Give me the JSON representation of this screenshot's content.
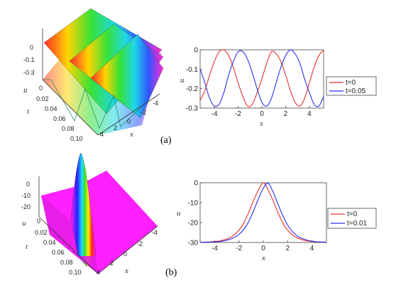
{
  "captions": [
    "(a)",
    "(b)"
  ],
  "chart_data": [
    {
      "type": "surface3d",
      "panel": "a-left",
      "zlabel": "u",
      "xlabel": "x",
      "tlabel": "t",
      "z_ticks": [
        "0",
        "-0.1",
        "-0.3"
      ],
      "t_ticks": [
        "0",
        "0.02",
        "0.04",
        "0.06",
        "0.08",
        "0.10"
      ],
      "x_ticks": [
        "-4",
        "-2",
        "0",
        "2",
        "4"
      ],
      "colormap": "rainbow",
      "x_range": [
        -4,
        4
      ],
      "t_range": [
        0,
        0.1
      ],
      "z_range": [
        -0.3,
        0
      ]
    },
    {
      "type": "line",
      "panel": "a-right",
      "xlabel": "x",
      "ylabel": "u",
      "xlim": [
        -5.2,
        5.2
      ],
      "ylim": [
        -0.3,
        0
      ],
      "x_ticks": [
        "-4",
        "-2",
        "0",
        "2",
        "4"
      ],
      "y_ticks": [
        "0",
        "-0.1",
        "-0.2",
        "-0.3"
      ],
      "legend_position": "right",
      "series": [
        {
          "name": "t=0",
          "color": "#e8302c",
          "x": [
            -5.2,
            -4.8,
            -4.4,
            -4.0,
            -3.6,
            -3.2,
            -2.8,
            -2.4,
            -2.0,
            -1.6,
            -1.2,
            -0.8,
            -0.4,
            0.0,
            0.4,
            0.8,
            1.2,
            1.6,
            2.0,
            2.4,
            2.8,
            3.2,
            3.6,
            4.0,
            4.4,
            4.8,
            5.2
          ],
          "y": [
            -0.26,
            -0.21,
            -0.13,
            -0.06,
            -0.01,
            0.0,
            -0.03,
            -0.09,
            -0.17,
            -0.24,
            -0.29,
            -0.28,
            -0.22,
            -0.15,
            -0.07,
            -0.01,
            -0.02,
            -0.06,
            -0.13,
            -0.21,
            -0.27,
            -0.29,
            -0.25,
            -0.17,
            -0.09,
            -0.03,
            -0.002
          ]
        },
        {
          "name": "t=0.05",
          "color": "#2b2ef0",
          "x": [
            -5.2,
            -4.8,
            -4.4,
            -4.0,
            -3.6,
            -3.2,
            -2.8,
            -2.4,
            -2.0,
            -1.6,
            -1.2,
            -0.8,
            -0.4,
            0.0,
            0.4,
            0.8,
            1.2,
            1.6,
            2.0,
            2.4,
            2.8,
            3.2,
            3.6,
            4.0,
            4.4,
            4.8,
            5.2
          ],
          "y": [
            -0.1,
            -0.17,
            -0.25,
            -0.29,
            -0.28,
            -0.22,
            -0.13,
            -0.06,
            -0.01,
            -0.01,
            -0.05,
            -0.12,
            -0.2,
            -0.27,
            -0.29,
            -0.25,
            -0.17,
            -0.09,
            -0.03,
            0.0,
            -0.02,
            -0.07,
            -0.15,
            -0.22,
            -0.28,
            -0.29,
            -0.24
          ]
        }
      ]
    },
    {
      "type": "surface3d",
      "panel": "b-left",
      "zlabel": "u",
      "xlabel": "x",
      "tlabel": "t",
      "z_ticks": [
        "0",
        "-10",
        "-20"
      ],
      "t_ticks": [
        "0",
        "0.02",
        "0.04",
        "0.06",
        "0.08",
        "0.10"
      ],
      "x_ticks": [
        "-4",
        "-2",
        "0",
        "2",
        "4"
      ],
      "colormap": "rainbow",
      "x_range": [
        -4,
        4
      ],
      "t_range": [
        0,
        0.1
      ],
      "z_range": [
        -30,
        0
      ]
    },
    {
      "type": "line",
      "panel": "b-right",
      "xlabel": "x",
      "ylabel": "u",
      "xlim": [
        -5.2,
        5.2
      ],
      "ylim": [
        -30,
        0
      ],
      "x_ticks": [
        "-4",
        "-2",
        "0",
        "2",
        "4"
      ],
      "y_ticks": [
        "0",
        "-10",
        "-20",
        "-30"
      ],
      "legend_position": "right",
      "series": [
        {
          "name": "t=0",
          "color": "#e8302c",
          "x": [
            -5.2,
            -4.8,
            -4.4,
            -4.0,
            -3.6,
            -3.2,
            -2.8,
            -2.4,
            -2.0,
            -1.6,
            -1.2,
            -0.8,
            -0.4,
            0.0,
            0.4,
            0.8,
            1.2,
            1.6,
            2.0,
            2.4,
            2.8,
            3.2,
            3.6,
            4.0,
            4.4,
            4.8,
            5.2
          ],
          "y": [
            -29.9,
            -29.8,
            -29.7,
            -29.5,
            -29.2,
            -28.6,
            -27.7,
            -26.2,
            -23.8,
            -20.1,
            -14.9,
            -8.9,
            -3.6,
            0.0,
            -3.6,
            -8.9,
            -14.9,
            -20.1,
            -23.8,
            -26.2,
            -27.7,
            -28.6,
            -29.2,
            -29.5,
            -29.7,
            -29.8,
            -29.9
          ]
        },
        {
          "name": "t=0.01",
          "color": "#2b2ef0",
          "x": [
            -5.2,
            -4.8,
            -4.4,
            -4.0,
            -3.6,
            -3.2,
            -2.8,
            -2.4,
            -2.0,
            -1.6,
            -1.2,
            -0.8,
            -0.4,
            0.0,
            0.4,
            0.8,
            1.2,
            1.6,
            2.0,
            2.4,
            2.8,
            3.2,
            3.6,
            4.0,
            4.4,
            4.8,
            5.2
          ],
          "y": [
            -29.95,
            -29.9,
            -29.8,
            -29.7,
            -29.5,
            -29.1,
            -28.5,
            -27.5,
            -25.9,
            -23.4,
            -19.5,
            -14.1,
            -8.0,
            -2.8,
            -0.2,
            -4.6,
            -10.6,
            -16.4,
            -21.2,
            -24.6,
            -26.7,
            -28.0,
            -28.8,
            -29.3,
            -29.6,
            -29.75,
            -29.85
          ]
        }
      ]
    }
  ]
}
